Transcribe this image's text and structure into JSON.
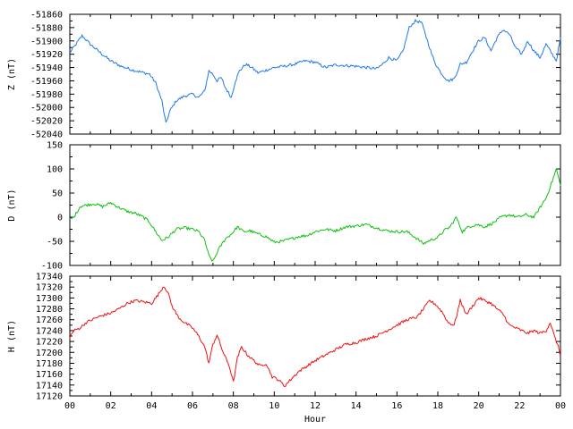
{
  "chart_data": [
    {
      "type": "line",
      "ylabel": "Z (nT)",
      "ylim": [
        -52040,
        -51860
      ],
      "yticks": [
        -51860,
        -51880,
        -51900,
        -51920,
        -51940,
        -51960,
        -51980,
        -52000,
        -52020,
        -52040
      ],
      "xlim": [
        0,
        24
      ],
      "color": "#1e78f0",
      "series": [
        {
          "x": [
            0,
            0.3,
            0.6,
            1,
            1.5,
            2,
            2.5,
            3,
            3.5,
            3.9,
            4.2,
            4.5,
            4.7,
            4.9,
            5.2,
            5.6,
            6,
            6.3,
            6.6,
            6.8,
            7,
            7.2,
            7.4,
            7.6,
            7.9,
            8.1,
            8.3,
            8.6,
            8.9,
            9.2,
            9.6,
            10,
            10.5,
            11,
            11.5,
            12,
            12.5,
            13,
            13.5,
            14,
            14.5,
            15,
            15.3,
            15.6,
            16,
            16.3,
            16.6,
            16.9,
            17.2,
            17.5,
            17.7,
            17.9,
            18.2,
            18.5,
            18.8,
            19.1,
            19.4,
            19.7,
            20,
            20.3,
            20.6,
            20.9,
            21.2,
            21.5,
            21.8,
            22.1,
            22.4,
            22.7,
            23,
            23.3,
            23.6,
            23.8,
            24
          ],
          "y": [
            -51918,
            -51905,
            -51892,
            -51905,
            -51918,
            -51930,
            -51938,
            -51943,
            -51947,
            -51950,
            -51963,
            -51990,
            -52024,
            -52005,
            -51990,
            -51983,
            -51980,
            -51985,
            -51975,
            -51945,
            -51950,
            -51960,
            -51955,
            -51970,
            -51985,
            -51960,
            -51945,
            -51935,
            -51940,
            -51948,
            -51944,
            -51940,
            -51938,
            -51935,
            -51930,
            -51932,
            -51940,
            -51936,
            -51937,
            -51938,
            -51940,
            -51942,
            -51935,
            -51925,
            -51930,
            -51915,
            -51880,
            -51870,
            -51872,
            -51900,
            -51920,
            -51935,
            -51950,
            -51960,
            -51957,
            -51935,
            -51932,
            -51915,
            -51900,
            -51895,
            -51915,
            -51895,
            -51883,
            -51890,
            -51910,
            -51920,
            -51900,
            -51915,
            -51925,
            -51905,
            -51920,
            -51930,
            -51895
          ]
        }
      ]
    },
    {
      "type": "line",
      "ylabel": "D (nT)",
      "ylim": [
        -100,
        150
      ],
      "yticks": [
        150,
        100,
        50,
        0,
        -50,
        -100
      ],
      "xlim": [
        0,
        24
      ],
      "color": "#10c010",
      "series": [
        {
          "x": [
            0,
            0.2,
            0.5,
            0.8,
            1.2,
            1.6,
            2,
            2.4,
            2.8,
            3.2,
            3.6,
            3.9,
            4.2,
            4.5,
            4.8,
            5.2,
            5.6,
            6,
            6.3,
            6.6,
            6.8,
            7,
            7.3,
            7.6,
            7.9,
            8.2,
            8.5,
            8.8,
            9.2,
            9.6,
            10,
            10.4,
            10.8,
            11.2,
            11.6,
            12,
            12.5,
            13,
            13.5,
            14,
            14.5,
            15,
            15.5,
            16,
            16.5,
            17,
            17.3,
            17.6,
            18,
            18.3,
            18.6,
            18.9,
            19.2,
            19.5,
            19.9,
            20.3,
            20.7,
            21.1,
            21.5,
            21.9,
            22.3,
            22.7,
            23,
            23.3,
            23.6,
            23.8,
            24
          ],
          "y": [
            -5,
            0,
            22,
            25,
            28,
            22,
            30,
            20,
            12,
            8,
            0,
            -10,
            -30,
            -48,
            -42,
            -25,
            -22,
            -25,
            -30,
            -48,
            -80,
            -92,
            -65,
            -45,
            -35,
            -20,
            -30,
            -28,
            -35,
            -40,
            -52,
            -50,
            -45,
            -40,
            -38,
            -30,
            -25,
            -28,
            -20,
            -18,
            -15,
            -22,
            -28,
            -30,
            -30,
            -45,
            -55,
            -48,
            -42,
            -28,
            -20,
            0,
            -30,
            -20,
            -15,
            -20,
            -12,
            0,
            5,
            0,
            5,
            0,
            20,
            40,
            75,
            100,
            65
          ]
        }
      ]
    },
    {
      "type": "line",
      "ylabel": "H (nT)",
      "ylim": [
        17120,
        17340
      ],
      "yticks": [
        17340,
        17320,
        17300,
        17280,
        17260,
        17240,
        17220,
        17200,
        17180,
        17160,
        17140,
        17120
      ],
      "xlim": [
        0,
        24
      ],
      "xticks": [
        "00",
        "02",
        "04",
        "06",
        "08",
        "10",
        "12",
        "14",
        "16",
        "18",
        "20",
        "22",
        "00"
      ],
      "xlabel": "Hour",
      "color": "#f01010",
      "series": [
        {
          "x": [
            0,
            0.2,
            0.5,
            0.8,
            1.2,
            1.6,
            2,
            2.4,
            2.8,
            3.2,
            3.6,
            4,
            4.3,
            4.6,
            4.8,
            5,
            5.3,
            5.6,
            6,
            6.3,
            6.6,
            6.8,
            7,
            7.2,
            7.5,
            7.8,
            8,
            8.2,
            8.4,
            8.7,
            9,
            9.3,
            9.6,
            9.9,
            10.2,
            10.5,
            10.8,
            11.2,
            11.6,
            12,
            12.5,
            13,
            13.5,
            14,
            14.5,
            15,
            15.5,
            16,
            16.5,
            17,
            17.3,
            17.6,
            17.9,
            18.2,
            18.5,
            18.8,
            19.1,
            19.4,
            19.7,
            20,
            20.3,
            20.6,
            20.9,
            21.2,
            21.5,
            21.8,
            22.1,
            22.4,
            22.7,
            23,
            23.3,
            23.5,
            23.7,
            23.9,
            24
          ],
          "y": [
            17228,
            17240,
            17245,
            17255,
            17262,
            17268,
            17272,
            17280,
            17290,
            17295,
            17293,
            17290,
            17305,
            17322,
            17310,
            17285,
            17265,
            17255,
            17245,
            17230,
            17210,
            17180,
            17215,
            17232,
            17200,
            17175,
            17145,
            17190,
            17210,
            17195,
            17185,
            17175,
            17180,
            17155,
            17150,
            17138,
            17150,
            17165,
            17175,
            17185,
            17195,
            17205,
            17215,
            17218,
            17225,
            17230,
            17240,
            17250,
            17260,
            17265,
            17280,
            17295,
            17288,
            17275,
            17255,
            17250,
            17295,
            17270,
            17285,
            17300,
            17295,
            17290,
            17280,
            17270,
            17250,
            17245,
            17240,
            17235,
            17240,
            17235,
            17240,
            17255,
            17230,
            17210,
            17195
          ]
        }
      ]
    }
  ]
}
